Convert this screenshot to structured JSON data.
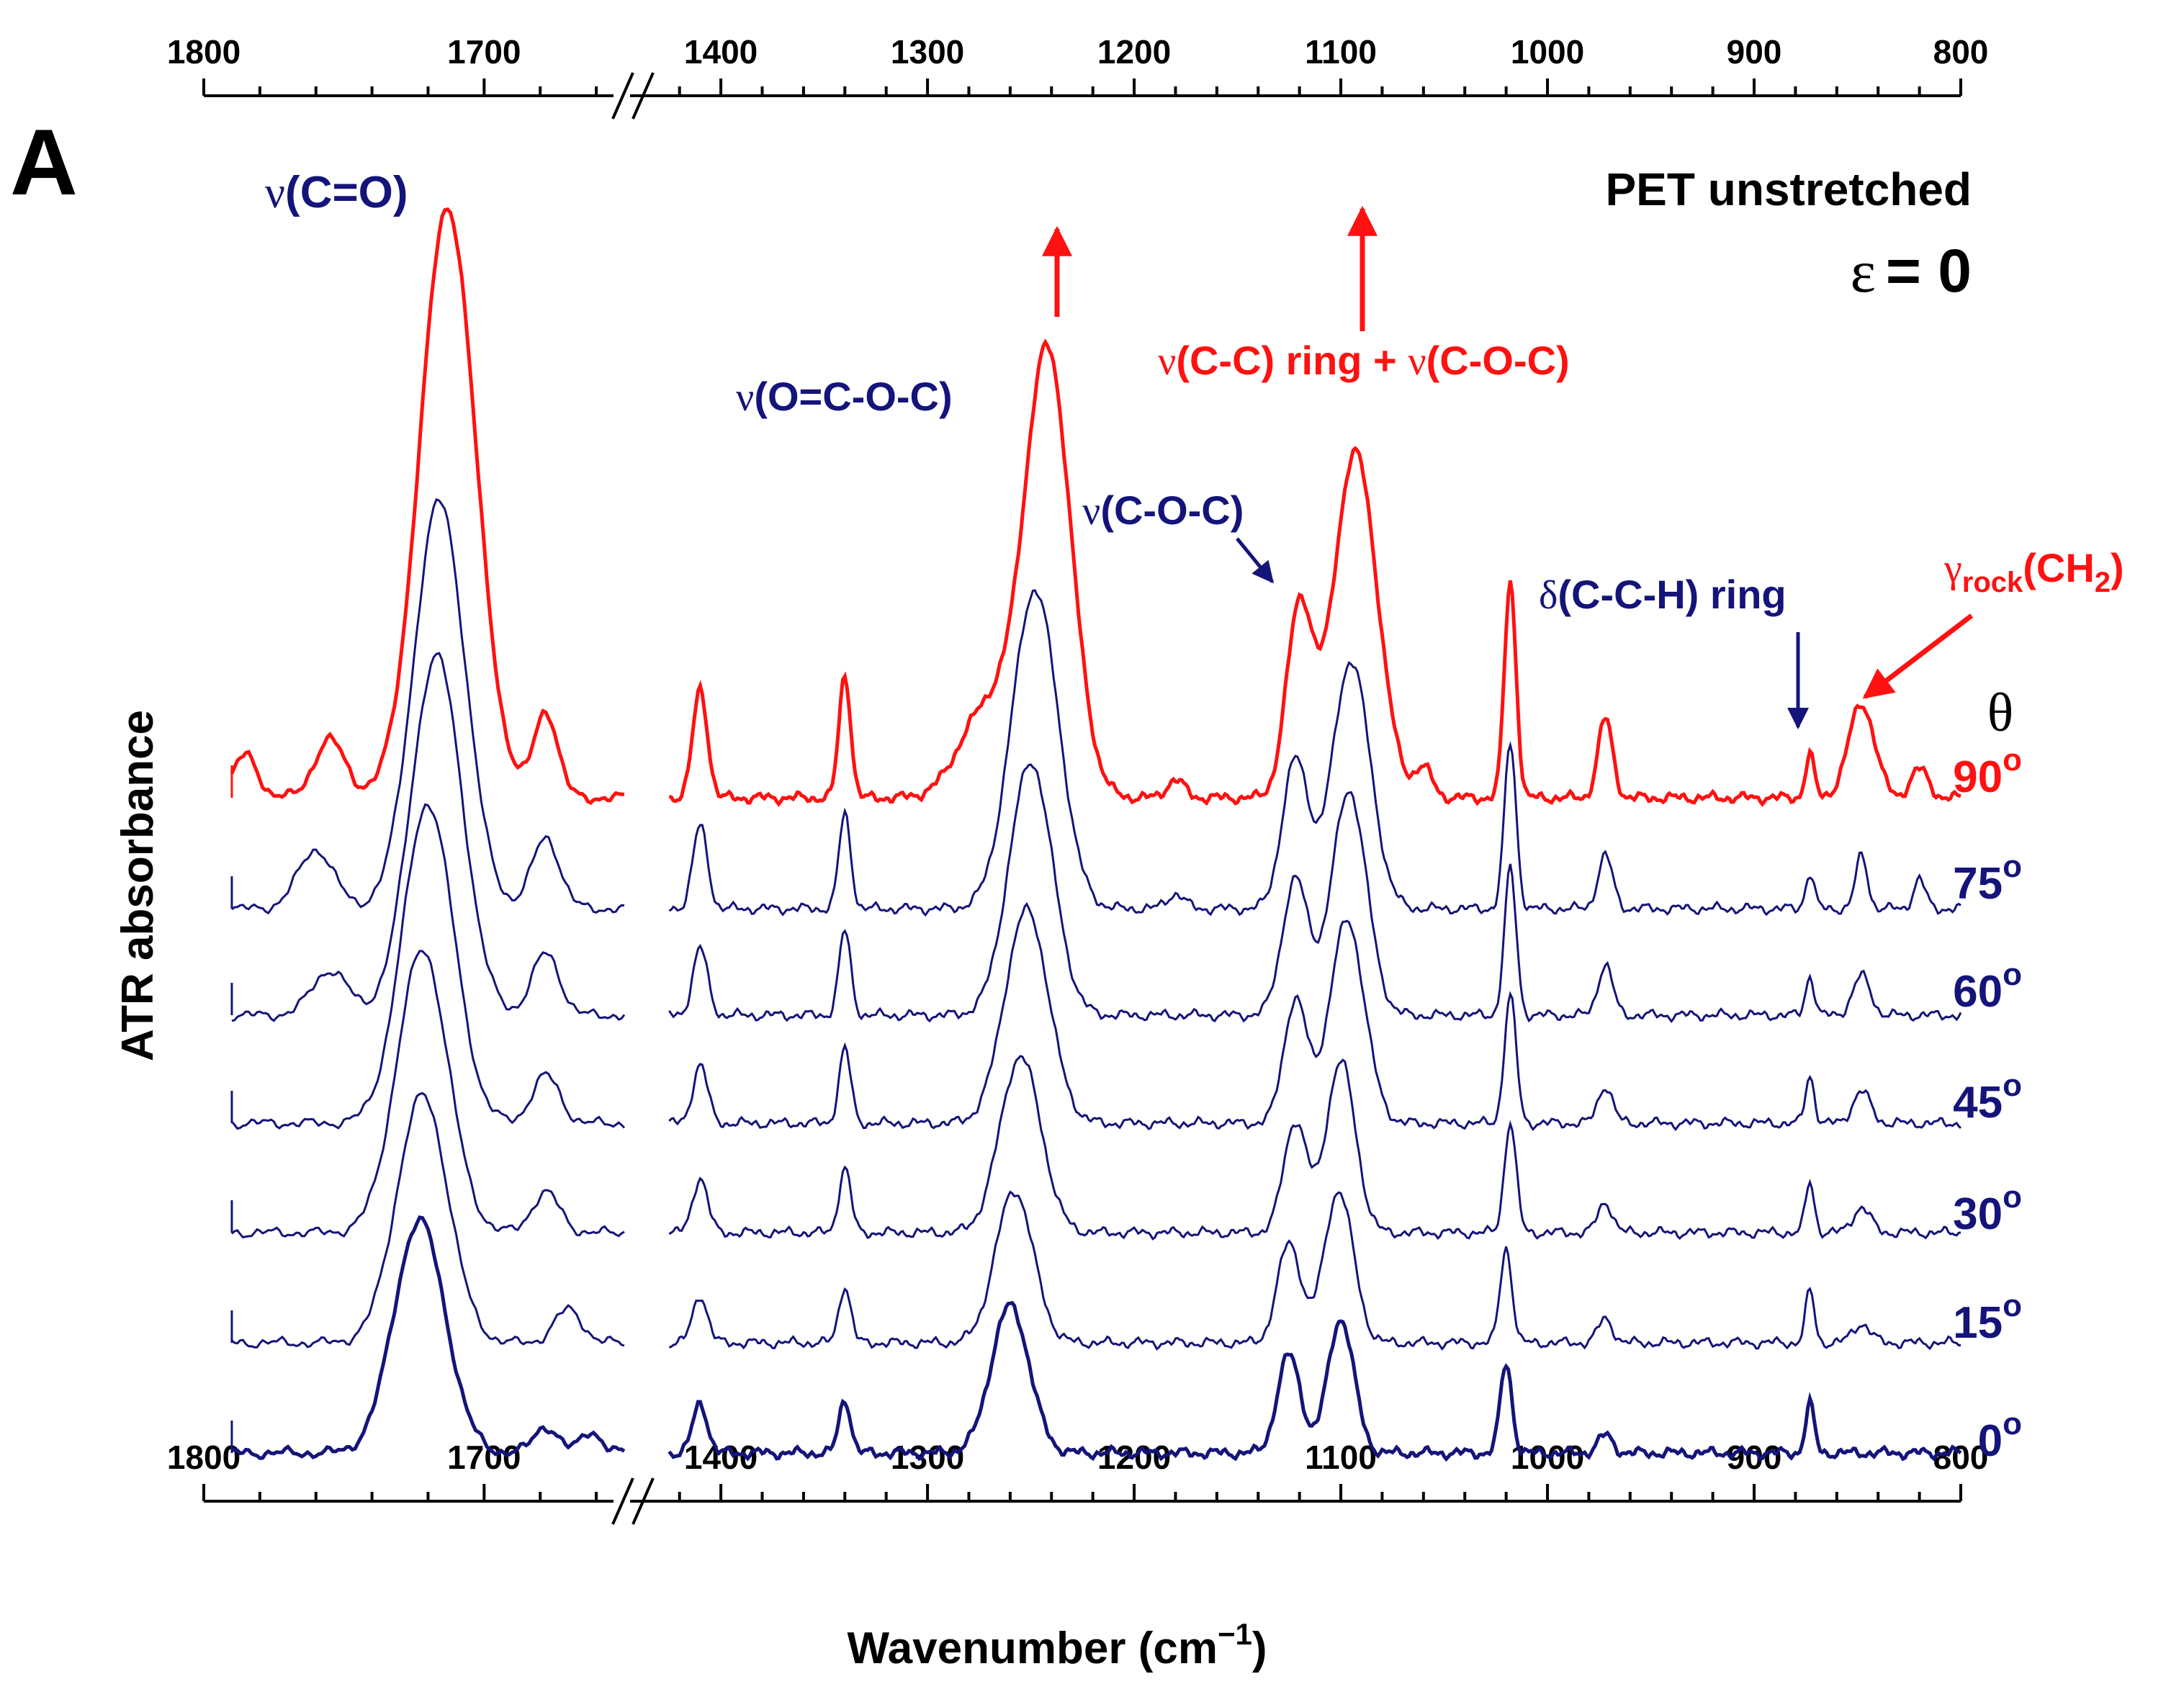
{
  "colors": {
    "red": "#ff1111",
    "navy": "#14147a",
    "black": "#000000"
  },
  "panel_label": "A",
  "chart_data": {
    "type": "line",
    "title": "PET unstretched",
    "subtitle": {
      "symbol": "ε",
      "text": "= 0"
    },
    "xlabel": {
      "main": "Wavenumber (cm",
      "sup": "−1",
      "tail": ")"
    },
    "ylabel": "ATR absorbance",
    "x_axis": {
      "reversed": true,
      "segments": [
        {
          "range": [
            1800,
            1650
          ],
          "ticks": [
            "1800",
            "1700"
          ]
        },
        {
          "range": [
            1430,
            800
          ],
          "ticks": [
            "1400",
            "1300",
            "1200",
            "1100",
            "1000",
            "900",
            "800"
          ]
        }
      ]
    },
    "legend_title": "θ",
    "series": [
      {
        "name": "90",
        "label": "90",
        "sup": "o",
        "color": "red"
      },
      {
        "name": "75",
        "label": "75",
        "sup": "o",
        "color": "navy"
      },
      {
        "name": "60",
        "label": "60",
        "sup": "o",
        "color": "navy"
      },
      {
        "name": "45",
        "label": "45",
        "sup": "o",
        "color": "navy"
      },
      {
        "name": "30",
        "label": "30",
        "sup": "o",
        "color": "navy"
      },
      {
        "name": "15",
        "label": "15",
        "sup": "o",
        "color": "navy"
      },
      {
        "name": "0",
        "label": "0",
        "sup": "o",
        "color": "navy"
      }
    ],
    "peaks": [
      {
        "x": 1713,
        "band": "ν(C=O)"
      },
      {
        "x": 1410,
        "band": ""
      },
      {
        "x": 1340,
        "band": ""
      },
      {
        "x": 1245,
        "band": "ν(O=C-O-C)"
      },
      {
        "x": 1120,
        "band": "ν(C-O-C)"
      },
      {
        "x": 1095,
        "band": "ν(C-C) ring + ν(C-O-C)"
      },
      {
        "x": 1018,
        "band": ""
      },
      {
        "x": 972,
        "band": ""
      },
      {
        "x": 873,
        "band": "δ(C-C-H) ring"
      },
      {
        "x": 848,
        "band": "γrock(CH2)"
      }
    ],
    "annotations": [
      {
        "name": "carbonyl",
        "symbol": "ν",
        "text": "(C=O)",
        "color": "navy"
      },
      {
        "name": "ester",
        "symbol": "ν",
        "text": "(O=C-O-C)",
        "color": "navy"
      },
      {
        "name": "ring-cc",
        "parts": [
          {
            "symbol": "ν",
            "text": "(C-C) ring + "
          },
          {
            "symbol": "ν",
            "text": "(C-O-C)"
          }
        ],
        "color": "red"
      },
      {
        "name": "coc",
        "symbol": "ν",
        "text": "(C-O-C)",
        "color": "navy"
      },
      {
        "name": "cch",
        "symbol": "δ",
        "text": "(C-C-H) ring",
        "color": "navy"
      },
      {
        "name": "rock",
        "symbol": "γ",
        "sub": "rock",
        "text": "(CH",
        "sub2": "2",
        "tail": ")",
        "color": "red"
      }
    ]
  }
}
